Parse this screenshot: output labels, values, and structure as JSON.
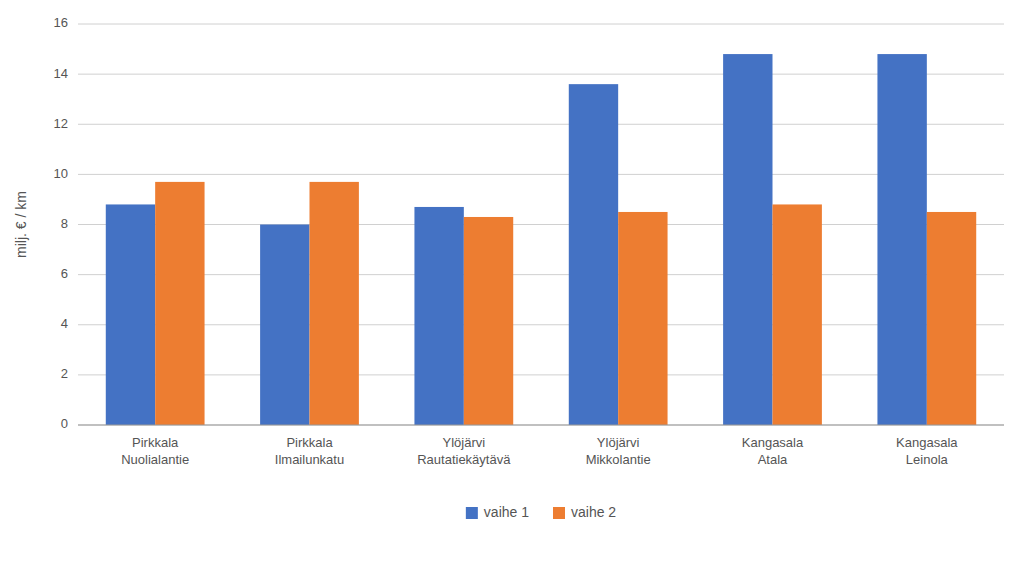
{
  "chart_data": {
    "type": "bar",
    "ylabel": "milj. € / km",
    "categories": [
      "Pirkkala\nNuolialantie",
      "Pirkkala\nIlmailunkatu",
      "Ylöjärvi\nRautatiekäytävä",
      "Ylöjärvi\nMikkolantie",
      "Kangasala\nAtala",
      "Kangasala\nLeinola"
    ],
    "series": [
      {
        "name": "vaihe 1",
        "color": "#4472C4",
        "values": [
          8.8,
          8.0,
          8.7,
          13.6,
          14.8,
          14.8
        ]
      },
      {
        "name": "vaihe 2",
        "color": "#ED7D31",
        "values": [
          9.7,
          9.7,
          8.3,
          8.5,
          8.8,
          8.5
        ]
      }
    ],
    "ylim": [
      0,
      16
    ],
    "yticks": [
      0,
      2,
      4,
      6,
      8,
      10,
      12,
      14,
      16
    ],
    "grid": true,
    "legend": "bottom"
  }
}
